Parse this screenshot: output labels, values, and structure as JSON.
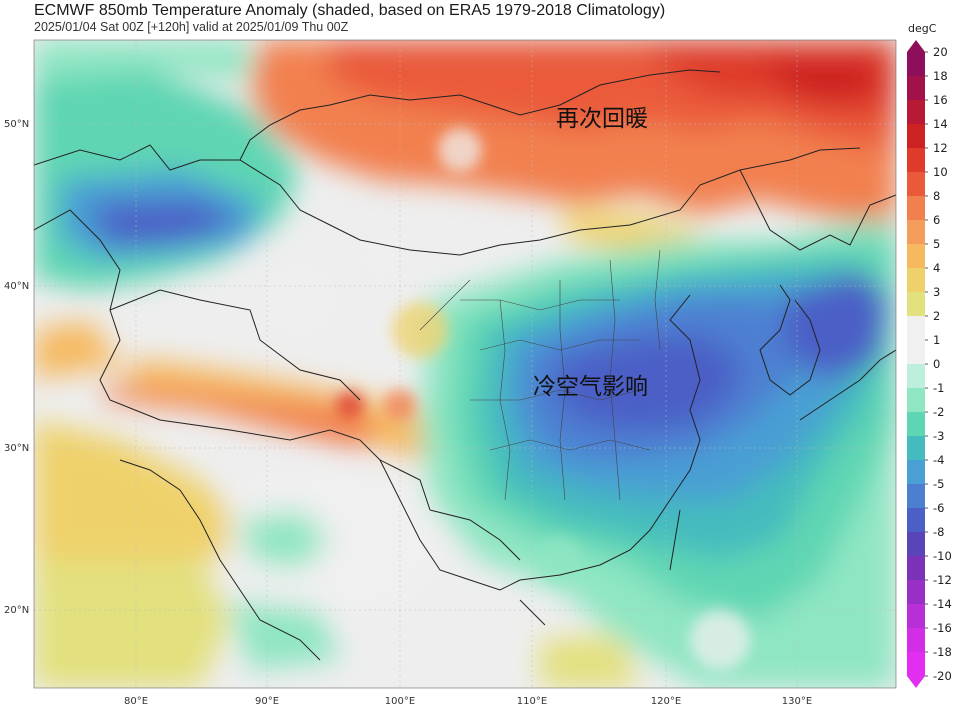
{
  "title": "ECMWF 850mb Temperature Anomaly (shaded, based on ERA5 1979-2018 Climatology)",
  "subtitle": "2025/01/04 Sat 00Z [+120h] valid at 2025/01/09 Thu 00Z",
  "annotations": {
    "warm": "再次回暖",
    "cold": "冷空气影响"
  },
  "axes": {
    "lat_labels": [
      "50°N",
      "40°N",
      "30°N",
      "20°N"
    ],
    "lon_labels": [
      "80°E",
      "90°E",
      "100°E",
      "110°E",
      "120°E",
      "130°E"
    ]
  },
  "colorbar": {
    "unit": "degC",
    "ticks": [
      "20",
      "18",
      "16",
      "14",
      "12",
      "10",
      "8",
      "6",
      "5",
      "4",
      "3",
      "2",
      "1",
      "0",
      "-1",
      "-2",
      "-3",
      "-4",
      "-5",
      "-6",
      "-8",
      "-10",
      "-12",
      "-14",
      "-16",
      "-18",
      "-20"
    ],
    "colors": [
      "#8e0e5c",
      "#a3114a",
      "#b81a35",
      "#cc2222",
      "#de3b2b",
      "#ea5a3a",
      "#f2804f",
      "#f59d5a",
      "#f6b960",
      "#efd16b",
      "#e3e07e",
      "#f0f0f0",
      "#f0f0f0",
      "#bdf0dc",
      "#8fe6c3",
      "#5fd6b3",
      "#44bbbe",
      "#4a9fd4",
      "#4d7fd1",
      "#4c5fc6",
      "#5a45b8",
      "#7a33b8",
      "#9a2fc8",
      "#b82fd8",
      "#d22ee8",
      "#e22ef0"
    ]
  }
}
